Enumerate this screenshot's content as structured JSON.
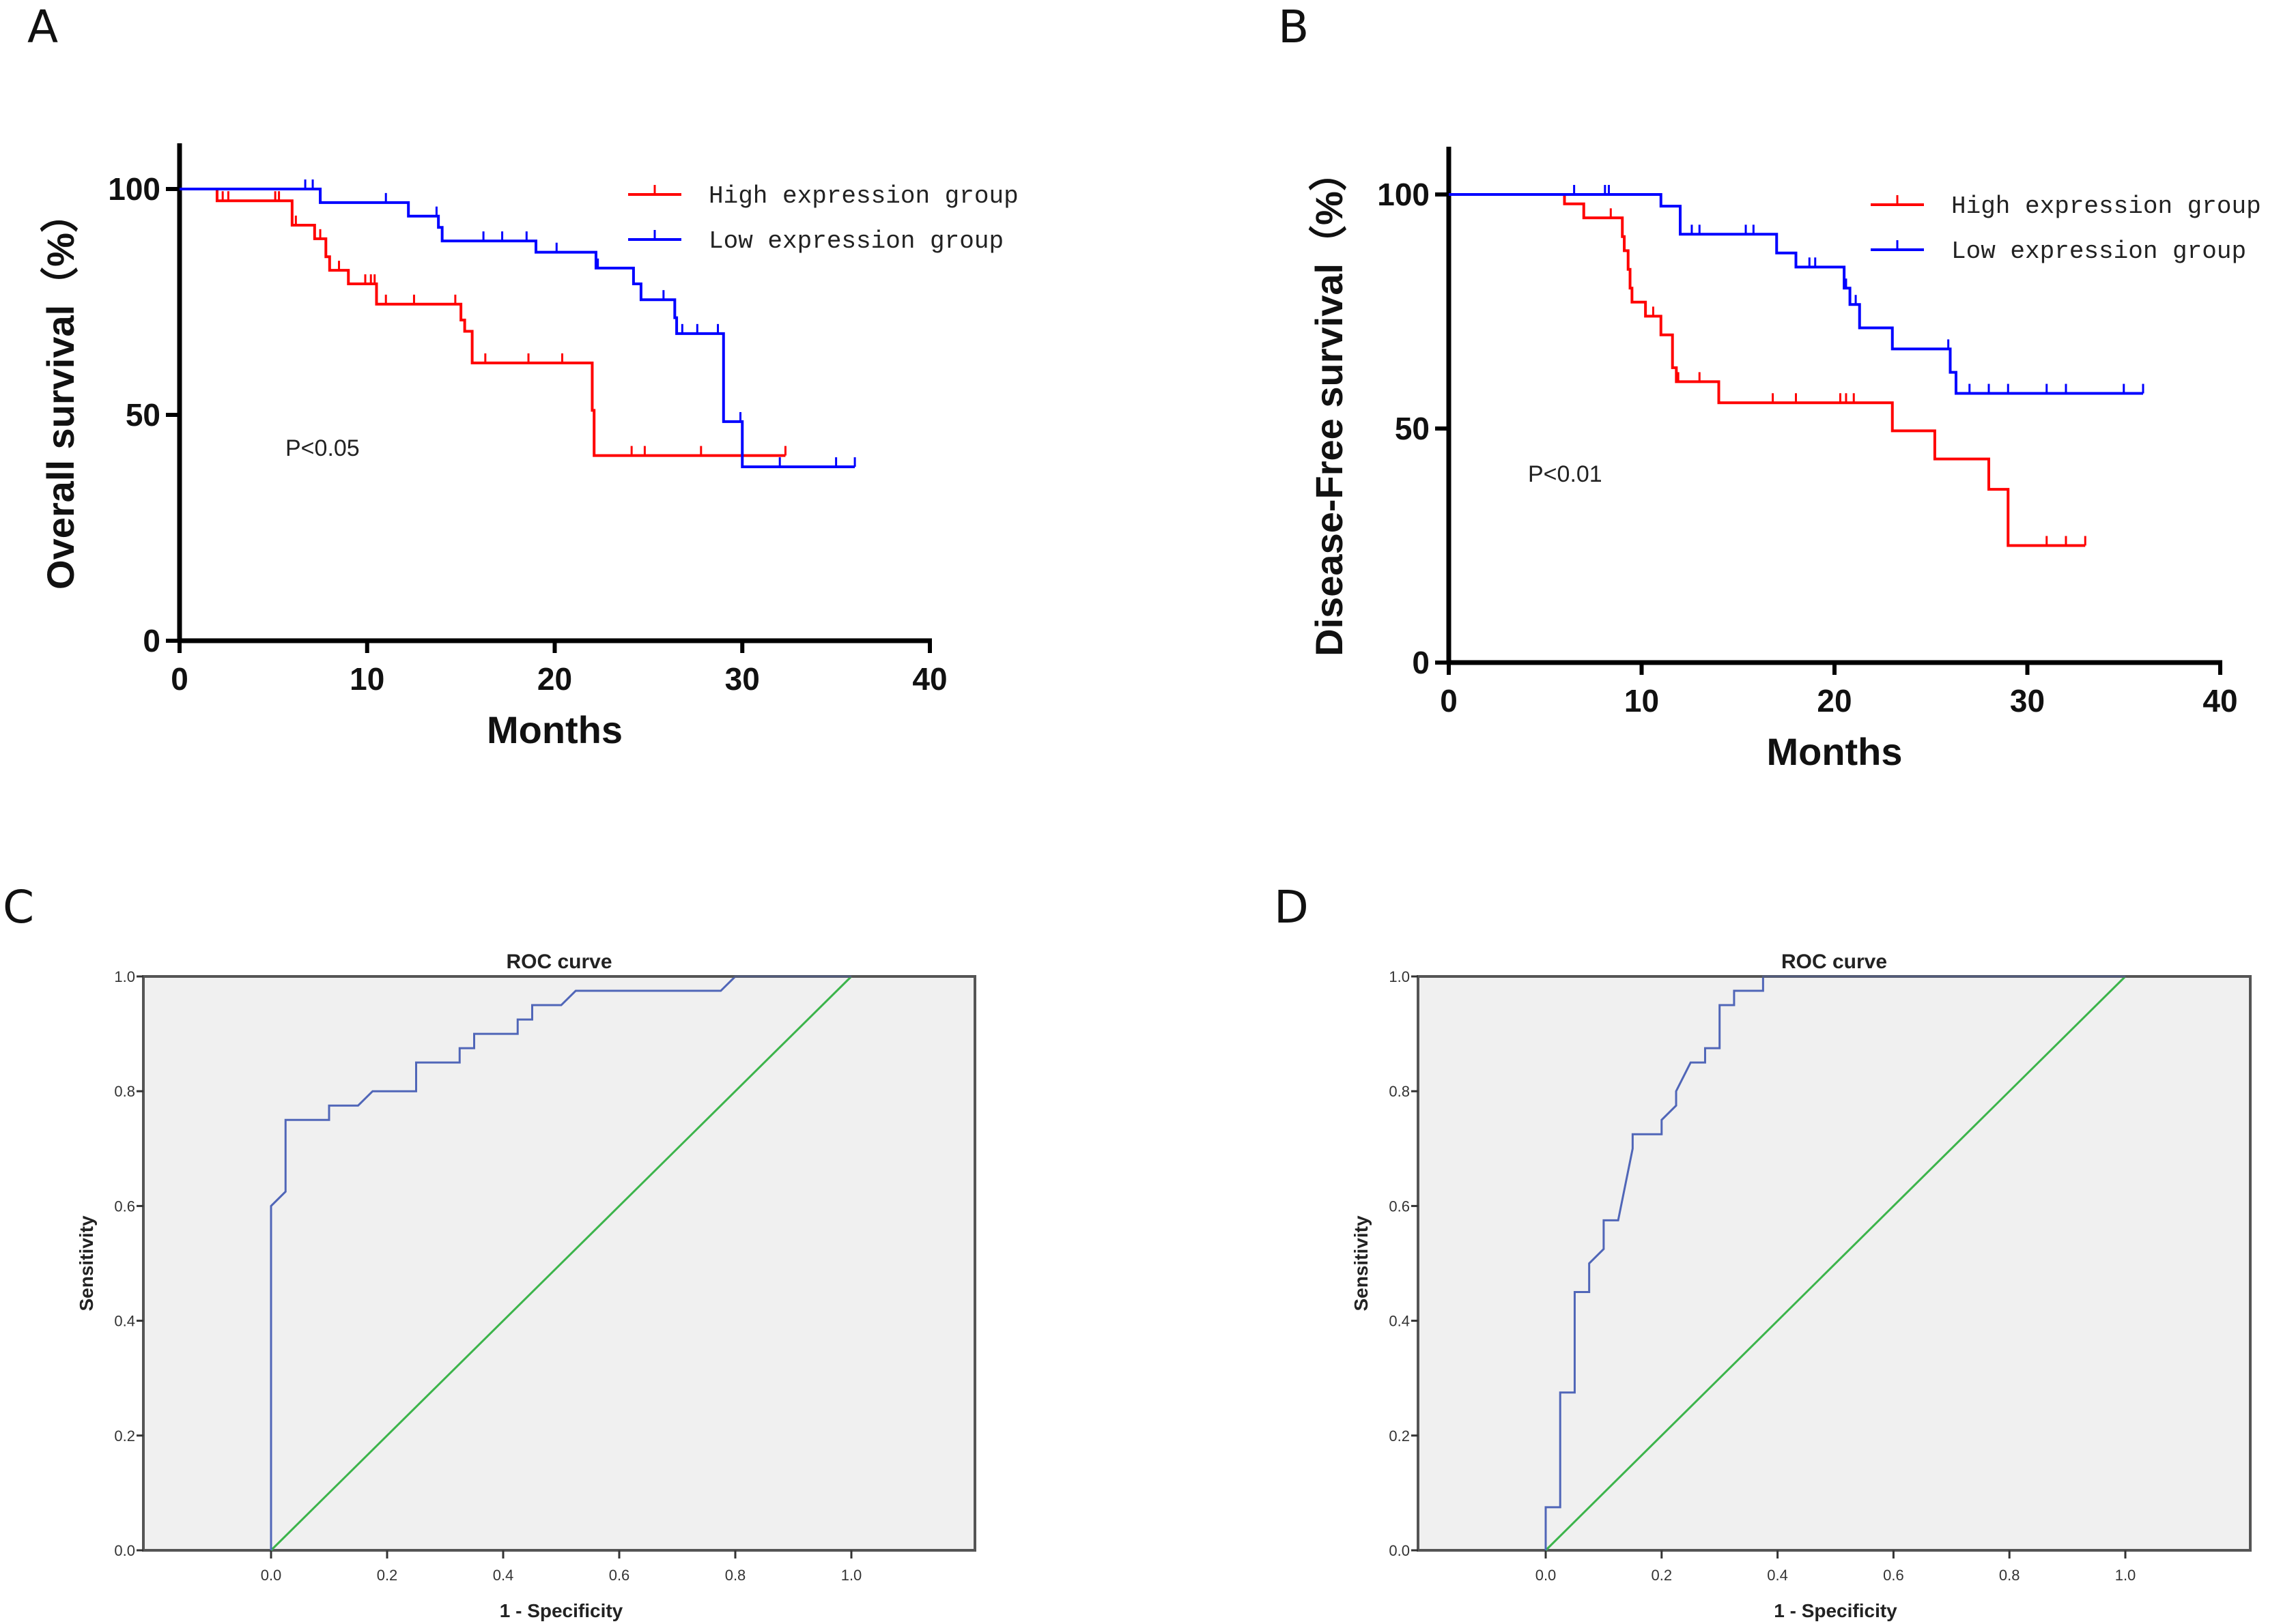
{
  "figure": {
    "panel_labels": [
      "A",
      "B",
      "C",
      "D"
    ]
  },
  "chart_data": [
    {
      "panel": "A",
      "type": "line",
      "subtype": "kaplan-meier",
      "title": "",
      "xlabel": "Months",
      "ylabel": "Overall survival（%）",
      "xlim": [
        0,
        40
      ],
      "ylim": [
        0,
        110
      ],
      "xticks": [
        0,
        10,
        20,
        30,
        40
      ],
      "yticks": [
        0,
        50,
        100
      ],
      "grid": false,
      "legend_position": "top-right",
      "annotation": "P<0.05",
      "series": [
        {
          "name": "High expression group",
          "color": "#ff0000",
          "steps": [
            [
              0,
              100
            ],
            [
              2,
              97.4
            ],
            [
              6,
              92
            ],
            [
              7.2,
              89
            ],
            [
              7.8,
              85
            ],
            [
              8,
              82
            ],
            [
              9,
              79
            ],
            [
              10.5,
              74.5
            ],
            [
              15,
              71
            ],
            [
              15.2,
              68.5
            ],
            [
              15.6,
              61.5
            ],
            [
              22,
              51
            ],
            [
              22.1,
              41
            ],
            [
              32.3,
              41
            ]
          ],
          "censored": [
            2.3,
            2.6,
            5.1,
            5.3,
            6.2,
            7.5,
            8.5,
            9.9,
            10.2,
            10.4,
            11,
            12.5,
            14.7,
            16.3,
            18.6,
            20.4,
            24.1,
            24.8,
            27.8,
            32.3
          ]
        },
        {
          "name": "Low expression group",
          "color": "#0000ff",
          "steps": [
            [
              0,
              100
            ],
            [
              7.5,
              97
            ],
            [
              12.2,
              94
            ],
            [
              13.8,
              91.5
            ],
            [
              14,
              88.5
            ],
            [
              19,
              86
            ],
            [
              22.2,
              82.5
            ],
            [
              24.2,
              79
            ],
            [
              24.6,
              75.5
            ],
            [
              26.4,
              71.5
            ],
            [
              26.5,
              68
            ],
            [
              29,
              48.5
            ],
            [
              30,
              38.5
            ],
            [
              36,
              38.5
            ]
          ],
          "censored": [
            6.7,
            7.1,
            11,
            13.7,
            16.2,
            17.2,
            18.5,
            20.1,
            22.3,
            25.8,
            26.8,
            27.6,
            28.7,
            29.9,
            32,
            35,
            36
          ]
        }
      ]
    },
    {
      "panel": "B",
      "type": "line",
      "subtype": "kaplan-meier",
      "title": "",
      "xlabel": "Months",
      "ylabel": "Disease-Free survival（%）",
      "xlim": [
        0,
        40
      ],
      "ylim": [
        0,
        110
      ],
      "xticks": [
        0,
        10,
        20,
        30,
        40
      ],
      "yticks": [
        0,
        50,
        100
      ],
      "grid": false,
      "legend_position": "top-right",
      "annotation": "P<0.01",
      "series": [
        {
          "name": "High expression group",
          "color": "#ff0000",
          "steps": [
            [
              0,
              100
            ],
            [
              6,
              98
            ],
            [
              7,
              95
            ],
            [
              9,
              91
            ],
            [
              9.1,
              88
            ],
            [
              9.3,
              84
            ],
            [
              9.4,
              80
            ],
            [
              9.5,
              77
            ],
            [
              10.2,
              74
            ],
            [
              11,
              70
            ],
            [
              11.6,
              63
            ],
            [
              11.8,
              60
            ],
            [
              14,
              55.5
            ],
            [
              23,
              49.5
            ],
            [
              25.2,
              43.5
            ],
            [
              28,
              37
            ],
            [
              29,
              25
            ],
            [
              33,
              25
            ]
          ],
          "censored": [
            8.4,
            10.6,
            11.9,
            13,
            16.8,
            18,
            20.3,
            20.6,
            21,
            31,
            32,
            33
          ]
        },
        {
          "name": "Low expression group",
          "color": "#0000ff",
          "steps": [
            [
              0,
              100
            ],
            [
              11,
              97.5
            ],
            [
              12,
              91.5
            ],
            [
              17,
              87.5
            ],
            [
              18,
              84.5
            ],
            [
              20.5,
              80
            ],
            [
              20.8,
              76.5
            ],
            [
              21.3,
              71.5
            ],
            [
              23,
              67
            ],
            [
              26,
              62
            ],
            [
              26.3,
              57.5
            ],
            [
              36,
              57.5
            ]
          ],
          "censored": [
            6.5,
            8.1,
            8.3,
            12.6,
            13,
            15.4,
            15.8,
            18.7,
            19,
            20.6,
            21.1,
            25.9,
            27,
            28,
            29,
            31,
            32,
            35,
            36
          ]
        }
      ]
    },
    {
      "panel": "C",
      "type": "line",
      "subtype": "roc",
      "title": "ROC curve",
      "xlabel": "1 - Specificity",
      "ylabel": "Sensitivity",
      "xlim": [
        0,
        1
      ],
      "ylim": [
        0,
        1
      ],
      "xticks": [
        "0.0",
        "0.2",
        "0.4",
        "0.6",
        "0.8",
        "1.0"
      ],
      "yticks": [
        "0.0",
        "0.2",
        "0.4",
        "0.6",
        "0.8",
        "1.0"
      ],
      "grid": false,
      "background": "#f0f0f0",
      "series": [
        {
          "name": "ROC",
          "color": "#5066b8",
          "points": [
            [
              0,
              0
            ],
            [
              0,
              0.6
            ],
            [
              0.025,
              0.625
            ],
            [
              0.025,
              0.75
            ],
            [
              0.1,
              0.75
            ],
            [
              0.1,
              0.775
            ],
            [
              0.15,
              0.775
            ],
            [
              0.175,
              0.8
            ],
            [
              0.25,
              0.8
            ],
            [
              0.25,
              0.85
            ],
            [
              0.325,
              0.85
            ],
            [
              0.325,
              0.875
            ],
            [
              0.35,
              0.875
            ],
            [
              0.35,
              0.9
            ],
            [
              0.425,
              0.9
            ],
            [
              0.425,
              0.925
            ],
            [
              0.45,
              0.925
            ],
            [
              0.45,
              0.95
            ],
            [
              0.5,
              0.95
            ],
            [
              0.525,
              0.975
            ],
            [
              0.775,
              0.975
            ],
            [
              0.8,
              1
            ],
            [
              1,
              1
            ]
          ]
        },
        {
          "name": "Reference line",
          "color": "#3cb44b",
          "points": [
            [
              0,
              0
            ],
            [
              1,
              1
            ]
          ]
        }
      ]
    },
    {
      "panel": "D",
      "type": "line",
      "subtype": "roc",
      "title": "ROC curve",
      "xlabel": "1 - Specificity",
      "ylabel": "Sensitivity",
      "xlim": [
        0,
        1
      ],
      "ylim": [
        0,
        1
      ],
      "xticks": [
        "0.0",
        "0.2",
        "0.4",
        "0.6",
        "0.8",
        "1.0"
      ],
      "yticks": [
        "0.0",
        "0.2",
        "0.4",
        "0.6",
        "0.8",
        "1.0"
      ],
      "grid": false,
      "background": "#f0f0f0",
      "series": [
        {
          "name": "ROC",
          "color": "#5066b8",
          "points": [
            [
              0,
              0
            ],
            [
              0,
              0.075
            ],
            [
              0.025,
              0.075
            ],
            [
              0.025,
              0.275
            ],
            [
              0.05,
              0.275
            ],
            [
              0.05,
              0.45
            ],
            [
              0.075,
              0.45
            ],
            [
              0.075,
              0.5
            ],
            [
              0.1,
              0.525
            ],
            [
              0.1,
              0.575
            ],
            [
              0.125,
              0.575
            ],
            [
              0.15,
              0.7
            ],
            [
              0.15,
              0.725
            ],
            [
              0.2,
              0.725
            ],
            [
              0.2,
              0.75
            ],
            [
              0.225,
              0.775
            ],
            [
              0.225,
              0.8
            ],
            [
              0.25,
              0.85
            ],
            [
              0.275,
              0.85
            ],
            [
              0.275,
              0.875
            ],
            [
              0.3,
              0.875
            ],
            [
              0.3,
              0.95
            ],
            [
              0.325,
              0.95
            ],
            [
              0.325,
              0.975
            ],
            [
              0.375,
              0.975
            ],
            [
              0.375,
              1
            ],
            [
              1,
              1
            ]
          ]
        },
        {
          "name": "Reference line",
          "color": "#3cb44b",
          "points": [
            [
              0,
              0
            ],
            [
              1,
              1
            ]
          ]
        }
      ]
    }
  ]
}
